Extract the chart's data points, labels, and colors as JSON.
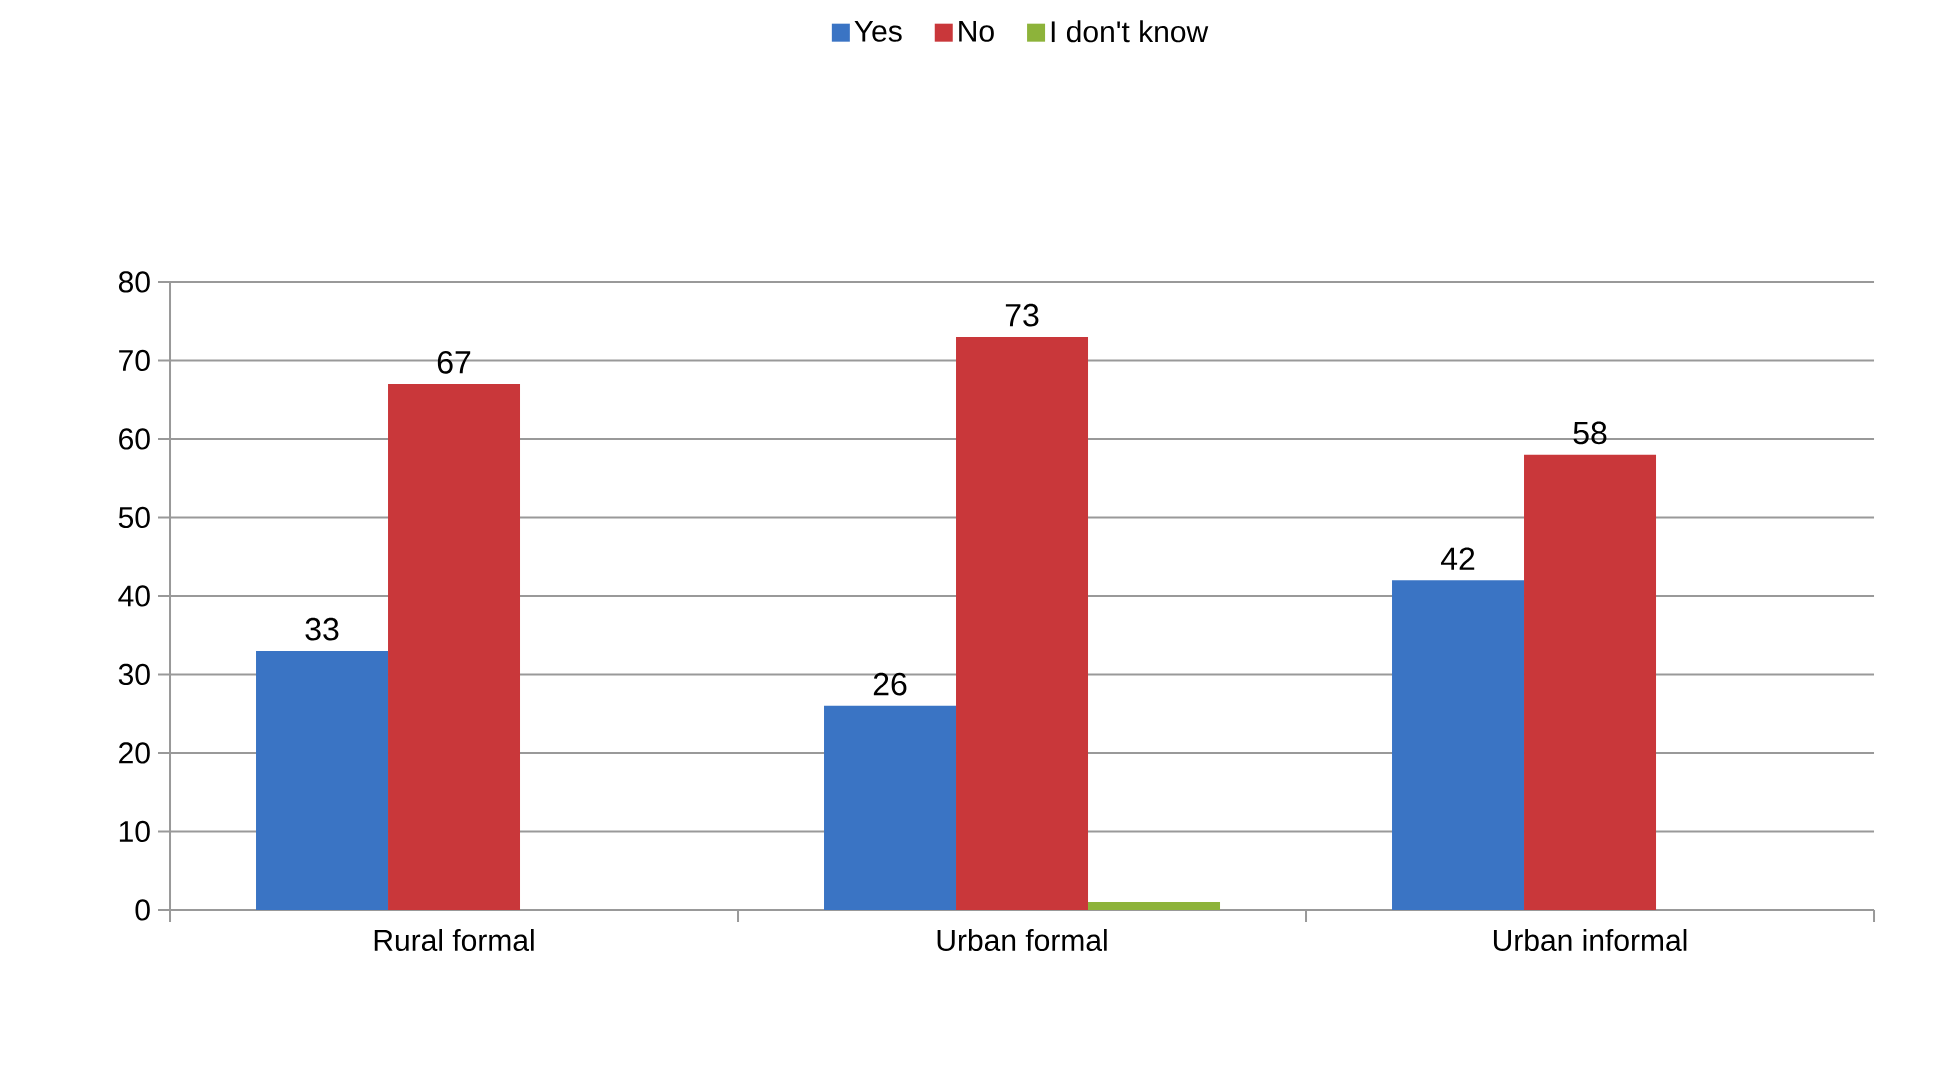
{
  "chart_data": {
    "type": "bar",
    "categories": [
      "Rural formal",
      "Urban formal",
      "Urban informal"
    ],
    "series": [
      {
        "name": "Yes",
        "color": "#3a74c4",
        "values": [
          33,
          26,
          42
        ],
        "value_labels": [
          "33",
          "26",
          "42"
        ]
      },
      {
        "name": "No",
        "color": "#c9373a",
        "values": [
          67,
          73,
          58
        ],
        "value_labels": [
          "67",
          "73",
          "58"
        ]
      },
      {
        "name": "I don't know",
        "color": "#8db33a",
        "values": [
          null,
          1,
          null
        ],
        "value_labels": [
          null,
          null,
          null
        ]
      }
    ],
    "ylim": [
      0,
      80
    ],
    "yticks": [
      0,
      10,
      20,
      30,
      40,
      50,
      60,
      70,
      80
    ],
    "grid": "y",
    "legend": "top"
  }
}
